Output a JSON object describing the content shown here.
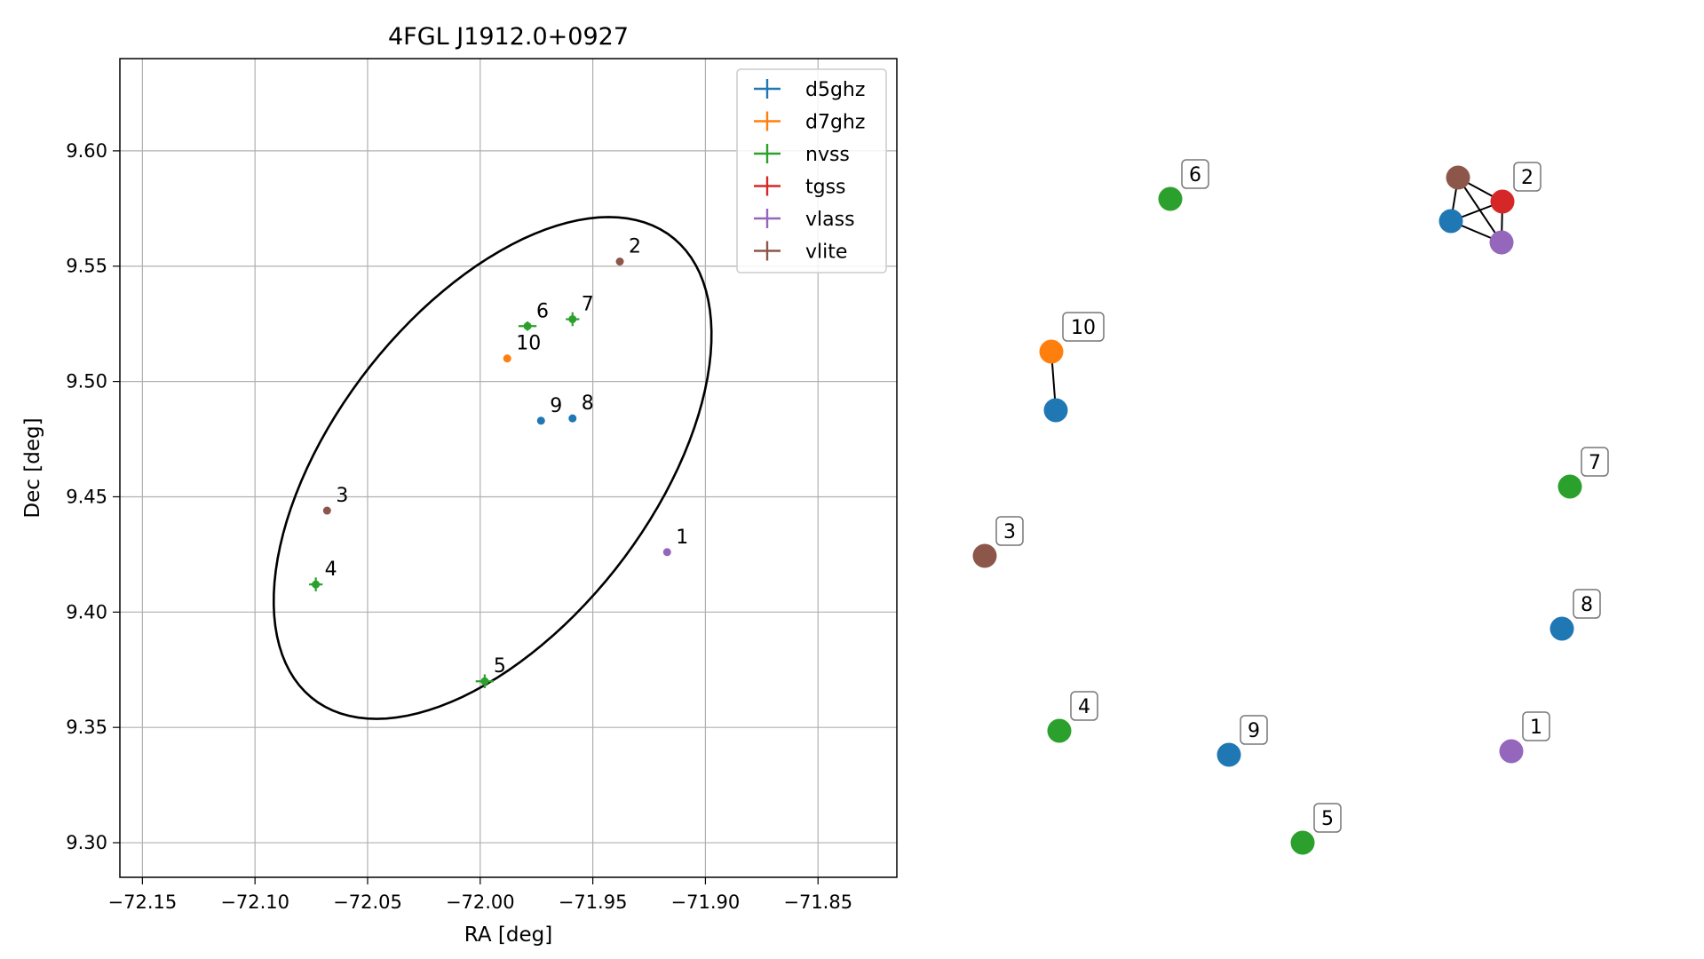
{
  "chart_data": [
    {
      "type": "scatter",
      "title": "4FGL J1912.0+0927",
      "xlabel": "RA [deg]",
      "ylabel": "Dec [deg]",
      "xlim": [
        -72.16,
        -71.815
      ],
      "ylim": [
        9.285,
        9.64
      ],
      "x_ticks": [
        "−72.15",
        "−72.10",
        "−72.05",
        "−72.00",
        "−71.95",
        "−71.90",
        "−71.85"
      ],
      "y_ticks": [
        "9.30",
        "9.35",
        "9.40",
        "9.45",
        "9.50",
        "9.55",
        "9.60"
      ],
      "x_tick_values": [
        -72.15,
        -72.1,
        -72.05,
        -72.0,
        -71.95,
        -71.9,
        -71.85
      ],
      "y_tick_values": [
        9.3,
        9.35,
        9.4,
        9.45,
        9.5,
        9.55,
        9.6
      ],
      "grid": true,
      "legend_position": "top-right",
      "series": [
        {
          "name": "d5ghz",
          "color": "#1f77b4",
          "points": [
            {
              "label": "8",
              "x": -71.959,
              "y": 9.484,
              "xerr": 0.0,
              "yerr": 0.0
            },
            {
              "label": "9",
              "x": -71.973,
              "y": 9.483,
              "xerr": 0.0,
              "yerr": 0.0
            }
          ]
        },
        {
          "name": "d7ghz",
          "color": "#ff7f0e",
          "points": [
            {
              "label": "10",
              "x": -71.988,
              "y": 9.51,
              "xerr": 0.0,
              "yerr": 0.0
            }
          ]
        },
        {
          "name": "nvss",
          "color": "#2ca02c",
          "points": [
            {
              "label": "4",
              "x": -72.073,
              "y": 9.412,
              "xerr": 0.003,
              "yerr": 0.003
            },
            {
              "label": "5",
              "x": -71.998,
              "y": 9.37,
              "xerr": 0.004,
              "yerr": 0.003
            },
            {
              "label": "6",
              "x": -71.979,
              "y": 9.524,
              "xerr": 0.004,
              "yerr": 0.002
            },
            {
              "label": "7",
              "x": -71.959,
              "y": 9.527,
              "xerr": 0.003,
              "yerr": 0.003
            }
          ]
        },
        {
          "name": "tgss",
          "color": "#d62728",
          "points": []
        },
        {
          "name": "vlass",
          "color": "#9467bd",
          "points": [
            {
              "label": "1",
              "x": -71.917,
              "y": 9.426,
              "xerr": 0.0,
              "yerr": 0.0
            }
          ]
        },
        {
          "name": "vlite",
          "color": "#8c564b",
          "points": [
            {
              "label": "2",
              "x": -71.938,
              "y": 9.552,
              "xerr": 0.0,
              "yerr": 0.0
            },
            {
              "label": "3",
              "x": -72.068,
              "y": 9.444,
              "xerr": 0.0,
              "yerr": 0.0
            }
          ]
        }
      ],
      "ellipse": {
        "center_x": -71.9945,
        "center_y": 9.4625,
        "semi_major": 0.128,
        "semi_minor": 0.07,
        "angle_deg": 51,
        "color": "#000000"
      }
    },
    {
      "type": "network",
      "nodes": [
        {
          "label": "6",
          "color": "#2ca02c",
          "show_label": true
        },
        {
          "label": "2",
          "color": "#d62728",
          "show_label": true
        },
        {
          "label": "",
          "color": "#8c564b",
          "show_label": false
        },
        {
          "label": "",
          "color": "#1f77b4",
          "show_label": false
        },
        {
          "label": "",
          "color": "#9467bd",
          "show_label": false
        },
        {
          "label": "10",
          "color": "#ff7f0e",
          "show_label": true
        },
        {
          "label": "",
          "color": "#1f77b4",
          "show_label": false
        },
        {
          "label": "7",
          "color": "#2ca02c",
          "show_label": true
        },
        {
          "label": "3",
          "color": "#8c564b",
          "show_label": true
        },
        {
          "label": "8",
          "color": "#1f77b4",
          "show_label": true
        },
        {
          "label": "4",
          "color": "#2ca02c",
          "show_label": true
        },
        {
          "label": "9",
          "color": "#1f77b4",
          "show_label": true
        },
        {
          "label": "1",
          "color": "#9467bd",
          "show_label": true
        },
        {
          "label": "5",
          "color": "#2ca02c",
          "show_label": true
        }
      ],
      "edges": [
        [
          1,
          2
        ],
        [
          1,
          3
        ],
        [
          1,
          4
        ],
        [
          2,
          3
        ],
        [
          2,
          4
        ],
        [
          3,
          4
        ],
        [
          5,
          6
        ]
      ]
    }
  ]
}
